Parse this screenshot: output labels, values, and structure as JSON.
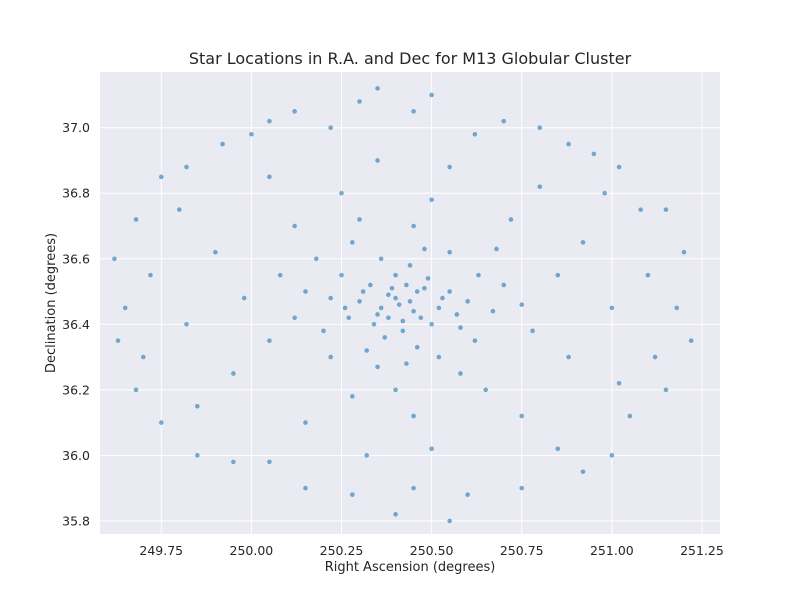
{
  "chart_data": {
    "type": "scatter",
    "title": "Star Locations in R.A. and Dec for M13 Globular Cluster",
    "xlabel": "Right Ascension (degrees)",
    "ylabel": "Declination (degrees)",
    "xlim": [
      249.58,
      251.3
    ],
    "ylim": [
      35.76,
      37.17
    ],
    "xticks": [
      249.75,
      250.0,
      250.25,
      250.5,
      250.75,
      251.0,
      251.25
    ],
    "xtick_labels": [
      "249.75",
      "250.00",
      "250.25",
      "250.50",
      "250.75",
      "251.00",
      "251.25"
    ],
    "yticks": [
      35.8,
      36.0,
      36.2,
      36.4,
      36.6,
      36.8,
      37.0
    ],
    "ytick_labels": [
      "35.8",
      "36.0",
      "36.2",
      "36.4",
      "36.6",
      "36.8",
      "37.0"
    ],
    "grid": true,
    "background_color": "#eaeaf2",
    "grid_color": "#ffffff",
    "point_color": "#1f77b4",
    "series": [
      {
        "points": [
          [
            250.41,
            36.46
          ],
          [
            250.38,
            36.49
          ],
          [
            250.45,
            36.44
          ],
          [
            250.35,
            36.43
          ],
          [
            250.48,
            36.51
          ],
          [
            250.3,
            36.47
          ],
          [
            250.52,
            36.45
          ],
          [
            250.42,
            36.38
          ],
          [
            250.4,
            36.55
          ],
          [
            250.33,
            36.52
          ],
          [
            250.5,
            36.4
          ],
          [
            250.27,
            36.42
          ],
          [
            250.55,
            36.5
          ],
          [
            250.44,
            36.58
          ],
          [
            250.37,
            36.36
          ],
          [
            250.6,
            36.47
          ],
          [
            250.22,
            36.48
          ],
          [
            250.46,
            36.33
          ],
          [
            250.36,
            36.6
          ],
          [
            250.58,
            36.39
          ],
          [
            250.25,
            36.55
          ],
          [
            250.63,
            36.55
          ],
          [
            250.2,
            36.38
          ],
          [
            250.48,
            36.63
          ],
          [
            250.32,
            36.32
          ],
          [
            250.67,
            36.44
          ],
          [
            250.15,
            36.5
          ],
          [
            250.43,
            36.28
          ],
          [
            250.55,
            36.62
          ],
          [
            250.28,
            36.65
          ],
          [
            250.7,
            36.52
          ],
          [
            250.12,
            36.42
          ],
          [
            250.52,
            36.3
          ],
          [
            250.35,
            36.27
          ],
          [
            250.62,
            36.35
          ],
          [
            250.18,
            36.6
          ],
          [
            250.75,
            36.46
          ],
          [
            250.08,
            36.55
          ],
          [
            250.45,
            36.7
          ],
          [
            250.3,
            36.72
          ],
          [
            250.68,
            36.63
          ],
          [
            250.22,
            36.3
          ],
          [
            250.58,
            36.25
          ],
          [
            250.4,
            36.2
          ],
          [
            250.78,
            36.38
          ],
          [
            250.05,
            36.35
          ],
          [
            250.85,
            36.55
          ],
          [
            249.98,
            36.48
          ],
          [
            250.5,
            36.78
          ],
          [
            250.25,
            36.8
          ],
          [
            250.72,
            36.72
          ],
          [
            250.12,
            36.7
          ],
          [
            250.65,
            36.2
          ],
          [
            250.28,
            36.18
          ],
          [
            250.45,
            36.12
          ],
          [
            250.88,
            36.3
          ],
          [
            249.95,
            36.25
          ],
          [
            250.92,
            36.65
          ],
          [
            249.9,
            36.62
          ],
          [
            250.55,
            36.88
          ],
          [
            250.35,
            36.9
          ],
          [
            250.8,
            36.82
          ],
          [
            250.05,
            36.85
          ],
          [
            250.75,
            36.12
          ],
          [
            250.15,
            36.1
          ],
          [
            250.5,
            36.02
          ],
          [
            250.32,
            36.0
          ],
          [
            251.0,
            36.45
          ],
          [
            249.82,
            36.4
          ],
          [
            251.02,
            36.22
          ],
          [
            249.8,
            36.75
          ],
          [
            250.98,
            36.8
          ],
          [
            249.85,
            36.15
          ],
          [
            250.62,
            36.98
          ],
          [
            250.22,
            37.0
          ],
          [
            250.88,
            36.95
          ],
          [
            250.0,
            36.98
          ],
          [
            250.85,
            36.02
          ],
          [
            250.05,
            35.98
          ],
          [
            250.45,
            35.9
          ],
          [
            250.6,
            35.88
          ],
          [
            250.28,
            35.88
          ],
          [
            251.1,
            36.55
          ],
          [
            249.72,
            36.55
          ],
          [
            251.12,
            36.3
          ],
          [
            249.7,
            36.3
          ],
          [
            251.08,
            36.75
          ],
          [
            249.75,
            36.85
          ],
          [
            251.05,
            36.12
          ],
          [
            249.75,
            36.1
          ],
          [
            250.45,
            37.05
          ],
          [
            250.3,
            37.08
          ],
          [
            250.7,
            37.02
          ],
          [
            250.12,
            37.05
          ],
          [
            250.95,
            36.92
          ],
          [
            249.92,
            36.95
          ],
          [
            250.92,
            35.95
          ],
          [
            249.95,
            35.98
          ],
          [
            250.4,
            35.82
          ],
          [
            250.55,
            35.8
          ],
          [
            251.18,
            36.45
          ],
          [
            249.65,
            36.45
          ],
          [
            251.2,
            36.62
          ],
          [
            249.62,
            36.6
          ],
          [
            251.22,
            36.35
          ],
          [
            249.63,
            36.35
          ],
          [
            251.15,
            36.2
          ],
          [
            249.68,
            36.2
          ],
          [
            251.15,
            36.75
          ],
          [
            249.68,
            36.72
          ],
          [
            250.75,
            35.9
          ],
          [
            250.15,
            35.9
          ],
          [
            250.8,
            37.0
          ],
          [
            250.05,
            37.02
          ],
          [
            251.0,
            36.0
          ],
          [
            249.85,
            36.0
          ],
          [
            251.02,
            36.88
          ],
          [
            249.82,
            36.88
          ],
          [
            250.5,
            37.1
          ],
          [
            250.35,
            37.12
          ],
          [
            250.4,
            36.48
          ],
          [
            250.44,
            36.47
          ],
          [
            250.36,
            36.45
          ],
          [
            250.47,
            36.42
          ],
          [
            250.39,
            36.51
          ],
          [
            250.31,
            36.5
          ],
          [
            250.53,
            36.48
          ],
          [
            250.42,
            36.41
          ],
          [
            250.34,
            36.4
          ],
          [
            250.49,
            36.54
          ],
          [
            250.26,
            36.45
          ],
          [
            250.57,
            36.43
          ],
          [
            250.43,
            36.52
          ],
          [
            250.38,
            36.42
          ],
          [
            250.46,
            36.5
          ]
        ]
      }
    ]
  }
}
